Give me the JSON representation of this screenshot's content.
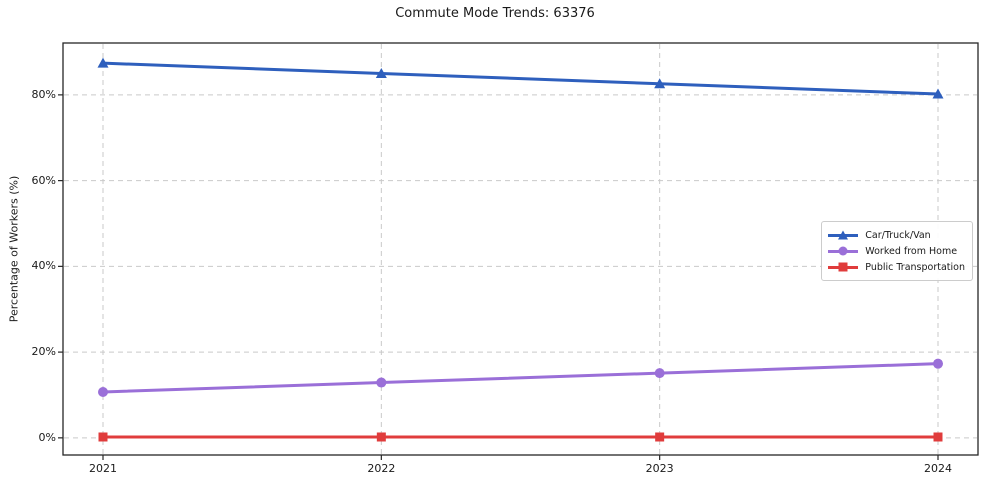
{
  "chart_data": {
    "type": "line",
    "title": "Commute Mode Trends: 63376",
    "xlabel": "",
    "ylabel": "Percentage of Workers (%)",
    "categories": [
      "2021",
      "2022",
      "2023",
      "2024"
    ],
    "series": [
      {
        "name": "Car/Truck/Van",
        "color": "#2e5fbd",
        "marker": "triangle",
        "values": [
          87.4,
          85.0,
          82.6,
          80.2
        ]
      },
      {
        "name": "Worked from Home",
        "color": "#9a6fd8",
        "marker": "circle",
        "values": [
          10.7,
          12.9,
          15.1,
          17.3
        ]
      },
      {
        "name": "Public Transportation",
        "color": "#e03c3c",
        "marker": "square",
        "values": [
          0.2,
          0.2,
          0.2,
          0.2
        ]
      }
    ],
    "yticks": [
      0,
      20,
      40,
      60,
      80
    ],
    "ytick_labels": [
      "0%",
      "20%",
      "40%",
      "60%",
      "80%"
    ],
    "ylim": [
      -4.0,
      92.1
    ],
    "grid": "dashed",
    "legend_position": "center-right"
  },
  "colors": {
    "grid": "#c9c9c9",
    "axis": "#262626",
    "text": "#1a1a1a",
    "background": "#ffffff"
  }
}
